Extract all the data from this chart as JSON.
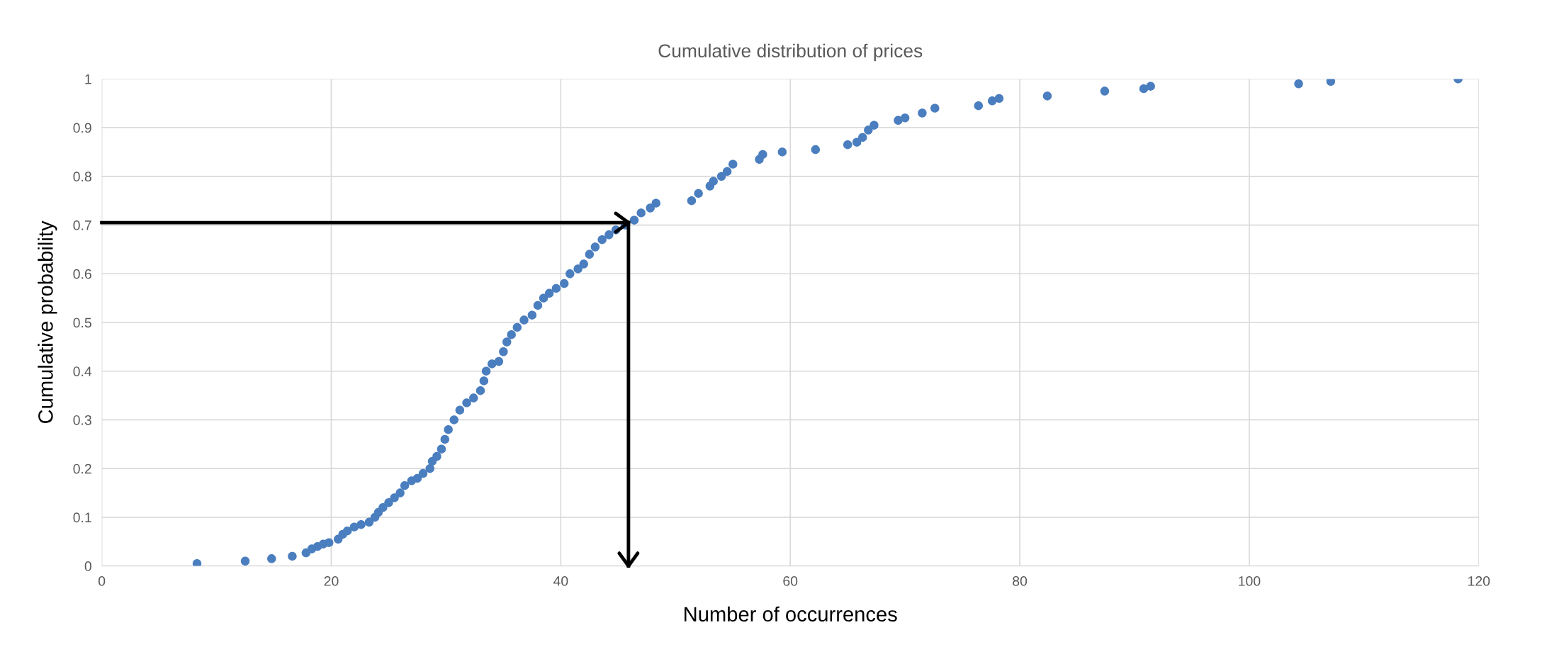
{
  "chart_data": {
    "type": "scatter",
    "title": "Cumulative distribution of prices",
    "xlabel": "Number of occurrences",
    "ylabel": "Cumulative probability",
    "series": [
      {
        "color": "#4a7ebf",
        "x": [
          8.3,
          12.5,
          14.8,
          16.6,
          17.8,
          18.3,
          18.8,
          19.3,
          19.8,
          20.6,
          21,
          21.4,
          22,
          22.6,
          23.3,
          23.8,
          24.1,
          24.5,
          25,
          25.5,
          26,
          26.4,
          27,
          27.5,
          28,
          28.6,
          28.8,
          29.2,
          29.6,
          29.9,
          30.2,
          30.7,
          31.2,
          31.8,
          32.4,
          33,
          33.3,
          33.5,
          34,
          34.6,
          35,
          35.3,
          35.7,
          36.2,
          36.8,
          37.5,
          38,
          38.5,
          39,
          39.6,
          40.3,
          40.8,
          41.5,
          42,
          42.5,
          43,
          43.6,
          44.2,
          44.8,
          45.6,
          46.4,
          47,
          47.8,
          48.3,
          51.4,
          52,
          53,
          53.3,
          54,
          54.5,
          55,
          57.3,
          57.6,
          59.3,
          62.2,
          65,
          65.8,
          66.3,
          66.8,
          67.3,
          69.4,
          70,
          71.5,
          72.6,
          76.4,
          77.6,
          78.2,
          82.4,
          87.4,
          90.8,
          91.4,
          104.3,
          107.1,
          118.2
        ],
        "values": [
          0.005,
          0.01,
          0.015,
          0.02,
          0.027,
          0.035,
          0.04,
          0.045,
          0.048,
          0.055,
          0.065,
          0.072,
          0.08,
          0.085,
          0.09,
          0.1,
          0.11,
          0.12,
          0.13,
          0.14,
          0.15,
          0.165,
          0.175,
          0.18,
          0.19,
          0.2,
          0.215,
          0.225,
          0.24,
          0.26,
          0.28,
          0.3,
          0.32,
          0.335,
          0.345,
          0.36,
          0.38,
          0.4,
          0.415,
          0.42,
          0.44,
          0.46,
          0.475,
          0.49,
          0.505,
          0.515,
          0.535,
          0.55,
          0.56,
          0.57,
          0.58,
          0.6,
          0.61,
          0.62,
          0.64,
          0.655,
          0.67,
          0.68,
          0.69,
          0.7,
          0.71,
          0.725,
          0.735,
          0.745,
          0.75,
          0.765,
          0.78,
          0.79,
          0.8,
          0.81,
          0.825,
          0.835,
          0.845,
          0.85,
          0.855,
          0.865,
          0.87,
          0.88,
          0.895,
          0.905,
          0.915,
          0.92,
          0.93,
          0.94,
          0.945,
          0.955,
          0.96,
          0.965,
          0.975,
          0.98,
          0.985,
          0.99,
          0.995,
          1.0
        ]
      },
      {
        "type": "line",
        "marker": "none",
        "color": "#000000",
        "x": [
          0,
          45.9
        ],
        "values": [
          0.705,
          0.705
        ]
      },
      {
        "type": "line",
        "marker": "none",
        "color": "#000000",
        "x": [
          45.9,
          45.9
        ],
        "values": [
          0.705,
          0
        ]
      }
    ],
    "xlim": [
      0,
      120
    ],
    "xticks": [
      0,
      20,
      40,
      60,
      80,
      100,
      120
    ],
    "ylim": [
      0,
      1
    ],
    "yticks": [
      0,
      0.1,
      0.2,
      0.3,
      0.4,
      0.5,
      0.6,
      0.7,
      0.8,
      0.9,
      1
    ],
    "grid": true,
    "marker": "circle"
  }
}
